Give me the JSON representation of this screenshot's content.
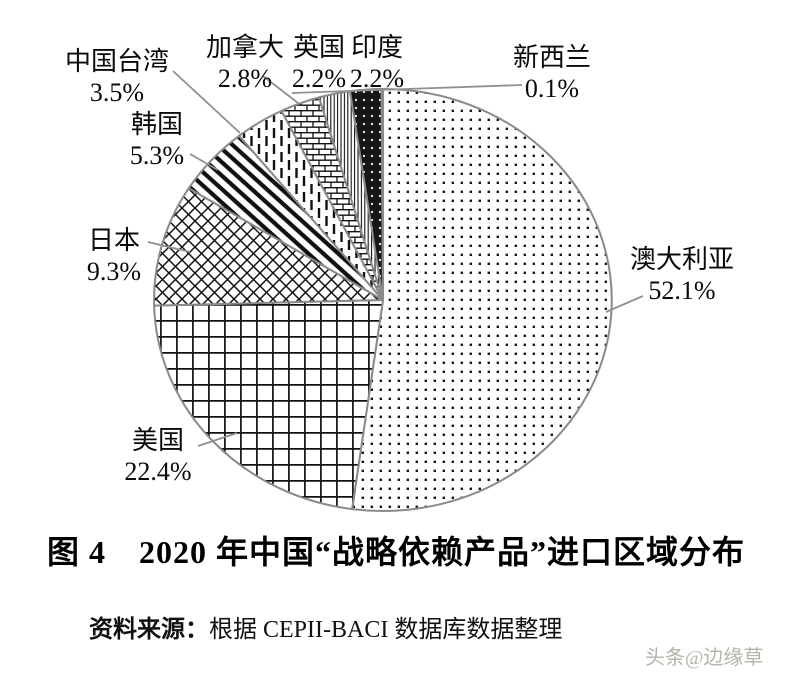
{
  "chart_data": {
    "type": "pie",
    "title": "图 4　2020 年中国“战略依赖产品”进口区域分布",
    "unit": "%",
    "direction": "clockwise",
    "start_angle_deg": 0,
    "legend_position": "none",
    "slices": [
      {
        "key": "australia",
        "name": "澳大利亚",
        "value": 52.1,
        "pct": "52.1%",
        "pattern": "dots"
      },
      {
        "key": "usa",
        "name": "美国",
        "value": 22.4,
        "pct": "22.4%",
        "pattern": "grid"
      },
      {
        "key": "japan",
        "name": "日本",
        "value": 9.3,
        "pct": "9.3%",
        "pattern": "diamond"
      },
      {
        "key": "korea",
        "name": "韩国",
        "value": 5.3,
        "pct": "5.3%",
        "pattern": "thick-diagonal"
      },
      {
        "key": "taiwan",
        "name": "中国台湾",
        "value": 3.5,
        "pct": "3.5%",
        "pattern": "dashed-vertical"
      },
      {
        "key": "canada",
        "name": "加拿大",
        "value": 2.8,
        "pct": "2.8%",
        "pattern": "brick"
      },
      {
        "key": "uk",
        "name": "英国",
        "value": 2.2,
        "pct": "2.2%",
        "pattern": "vertical-lines"
      },
      {
        "key": "india",
        "name": "印度",
        "value": 2.2,
        "pct": "2.2%",
        "pattern": "black-dots"
      },
      {
        "key": "nz",
        "name": "新西兰",
        "value": 0.1,
        "pct": "0.1%",
        "pattern": "solid-dark"
      }
    ],
    "colors": {
      "ink": "#111111",
      "slice_outline": "#8a8a8a",
      "leader_line": "#909090",
      "nz_fill": "#4d4d4d"
    }
  },
  "caption": {
    "text": "图 4　2020 年中国“战略依赖产品”进口区域分布"
  },
  "source": {
    "prefix": "资料来源：",
    "text": "根据 CEPII-BACI 数据库数据整理"
  },
  "watermark": {
    "text": "头条@边缘草"
  }
}
